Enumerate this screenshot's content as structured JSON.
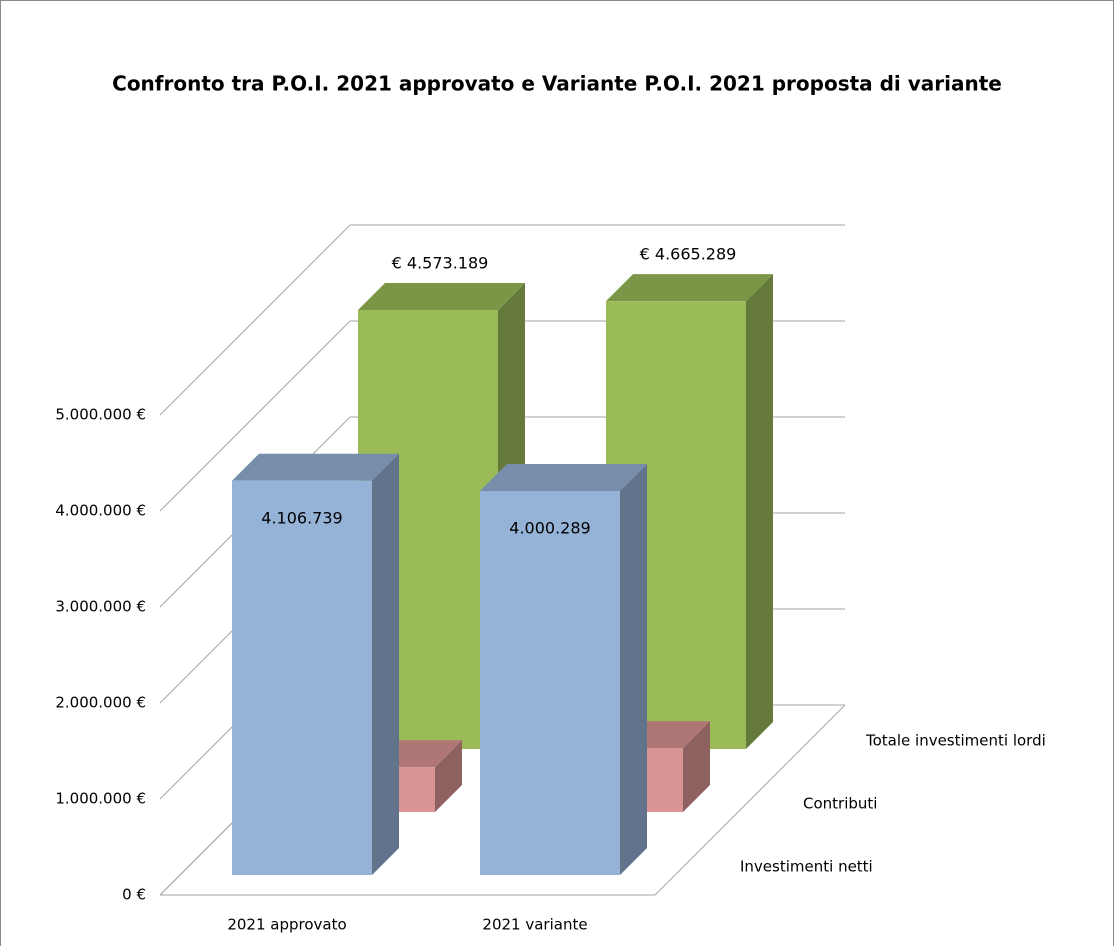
{
  "chart_data": {
    "type": "bar3d",
    "title": "Confronto  tra P.O.I. 2021 approvato e Variante P.O.I. 2021 proposta di variante",
    "categories": [
      "2021 approvato",
      "2021 variante"
    ],
    "series": [
      {
        "name": "Investimenti netti",
        "color": "#95b3d7",
        "values": [
          4106739,
          4000289
        ],
        "value_labels": [
          "4.106.739",
          "4.000.289"
        ]
      },
      {
        "name": "Contributi",
        "color": "#d99594",
        "values": [
          466450,
          665000
        ]
      },
      {
        "name": "Totale investimenti lordi",
        "color": "#9bbb59",
        "values": [
          4573189,
          4665289
        ],
        "value_labels": [
          "€ 4.573.189",
          "€ 4.665.289"
        ]
      }
    ],
    "ylim": [
      0,
      5000000
    ],
    "yticks": [
      {
        "value": 0,
        "label": "0 €"
      },
      {
        "value": 1000000,
        "label": "1.000.000 €"
      },
      {
        "value": 2000000,
        "label": "2.000.000 €"
      },
      {
        "value": 3000000,
        "label": "3.000.000 €"
      },
      {
        "value": 4000000,
        "label": "4.000.000 €"
      },
      {
        "value": 5000000,
        "label": "5.000.000 €"
      }
    ],
    "grid": true
  }
}
